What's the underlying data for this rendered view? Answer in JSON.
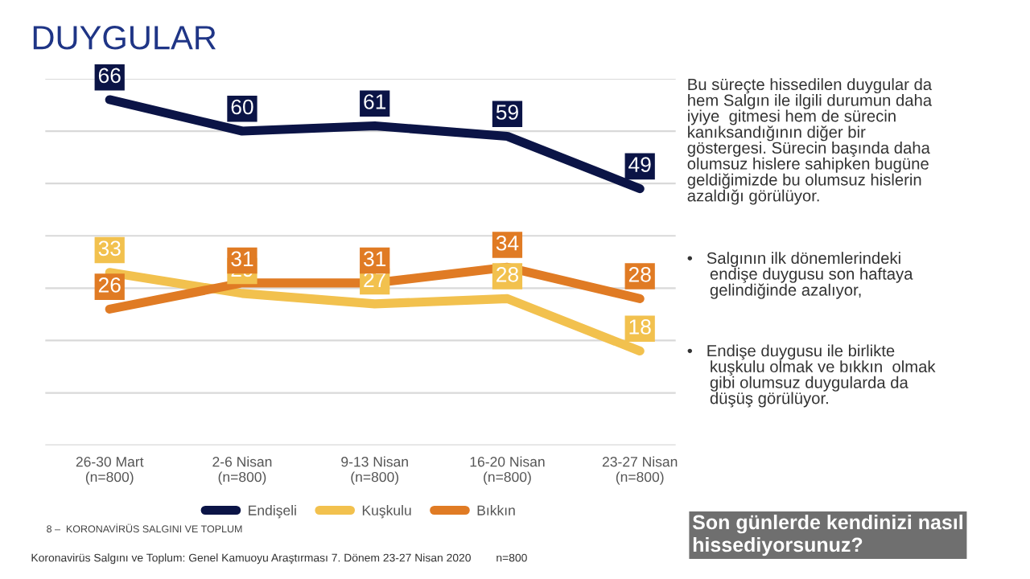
{
  "chart_data": {
    "type": "line",
    "title": "DUYGULAR",
    "categories": [
      "26-30 Mart\n(n=800)",
      "2-6 Nisan\n(n=800)",
      "9-13 Nisan\n(n=800)",
      "16-20 Nisan\n(n=800)",
      "23-27 Nisan\n(n=800)"
    ],
    "series": [
      {
        "name": "Endişeli",
        "color": "#0b1446",
        "values": [
          66,
          60,
          61,
          59,
          49
        ]
      },
      {
        "name": "Kuşkulu",
        "color": "#f2c14e",
        "values": [
          33,
          29,
          27,
          28,
          18
        ]
      },
      {
        "name": "Bıkkın",
        "color": "#e07b24",
        "values": [
          26,
          31,
          31,
          34,
          28
        ]
      }
    ],
    "ylim": [
      0,
      70
    ],
    "yticks": [
      {
        "value": 0,
        "label": null
      },
      {
        "value": 10,
        "label": null
      },
      {
        "value": 20,
        "label": null
      },
      {
        "value": 30,
        "label": null
      },
      {
        "value": 40,
        "label": null
      },
      {
        "value": 50,
        "label": null
      },
      {
        "value": 60,
        "label": null
      },
      {
        "value": 70,
        "label": null
      }
    ],
    "grid": "y",
    "legend": "bottom",
    "tick_labels": "x",
    "data_labels": true,
    "marker": "none",
    "line_style": "solid",
    "annotations": [
      "Bu süreçte hissedilen duygular da\nhem Salgın ile ilgili durumun daha\niyiye  gitmesi hem de sürecin\nkanıksandığının diğer bir\ngöstergesi. Sürecin başında daha\nolumsuz hislere sahipken bugüne\ngeldiğimizde bu olumsuz hislerin\nazaldığı görülüyor.",
      "•   Salgının ilk dönemlerindeki\n     endişe duygusu son haftaya\n     gelindiğinde azalıyor,",
      "•   Endişe duygusu ile birlikte\n     kuşkulu olmak ve bıkkın  olmak\n     gibi olumsuz duygularda da\n     düşüş görülüyor.",
      "Son günlerde kendinizi nasıl\nhissediyorsunuz?",
      "8 –  KORONAVİRÜS SALGINI VE TOPLUM",
      "Koronavirüs Salgını ve Toplum: Genel Kamuoyu Araştırması 7. Dönem 23-27 Nisan 2020        n=800"
    ]
  }
}
